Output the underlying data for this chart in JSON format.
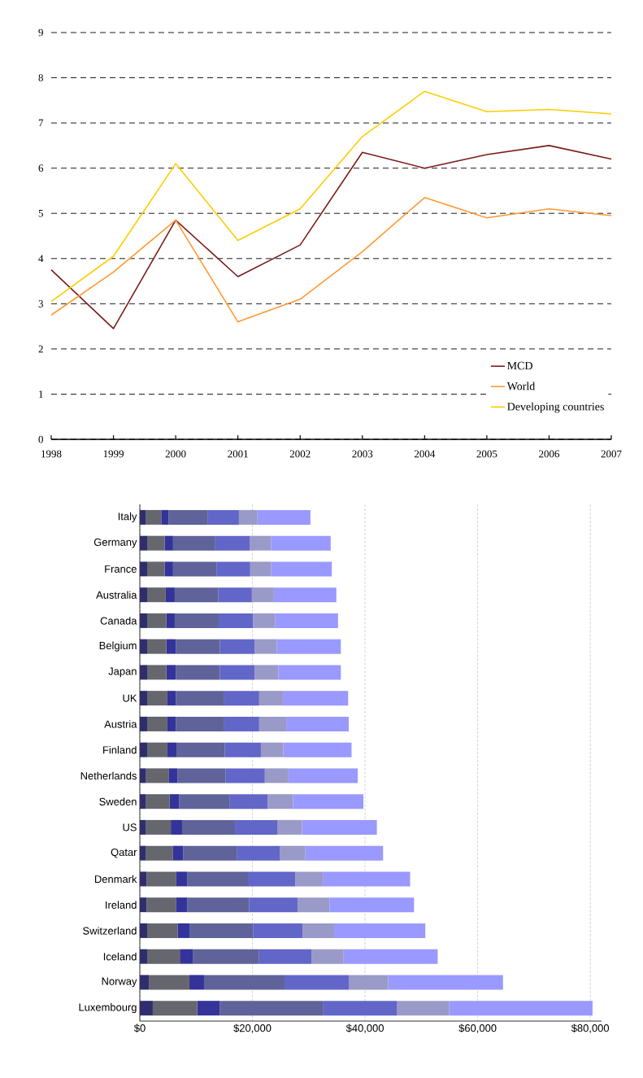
{
  "chart_data": [
    {
      "type": "line",
      "x": [
        1998,
        1999,
        2000,
        2001,
        2002,
        2003,
        2004,
        2005,
        2006,
        2007
      ],
      "series": [
        {
          "name": "MCD",
          "color": "#7b1a1a",
          "values": [
            3.75,
            2.45,
            4.85,
            3.6,
            4.3,
            6.35,
            6.0,
            6.3,
            6.5,
            6.2
          ]
        },
        {
          "name": "World",
          "color": "#ff9933",
          "values": [
            2.75,
            3.7,
            4.85,
            2.6,
            3.1,
            4.15,
            5.35,
            4.9,
            5.1,
            4.95
          ]
        },
        {
          "name": "Developing countries",
          "color": "#ffcc00",
          "values": [
            3.05,
            4.05,
            6.1,
            4.4,
            5.1,
            6.7,
            7.7,
            7.25,
            7.3,
            7.2
          ]
        }
      ],
      "xlim": [
        1998,
        2007
      ],
      "xticks": [
        1998,
        1999,
        2000,
        2001,
        2002,
        2003,
        2004,
        2005,
        2006,
        2007
      ],
      "ylim": [
        0,
        9
      ],
      "yticks": [
        0,
        1,
        2,
        3,
        4,
        5,
        6,
        7,
        8,
        9
      ],
      "grid": "y",
      "legend": "bottom right"
    },
    {
      "type": "bar",
      "orientation": "horizontal",
      "stacked": true,
      "categories": [
        "Italy",
        "Germany",
        "France",
        "Australia",
        "Canada",
        "Belgium",
        "Japan",
        "UK",
        "Austria",
        "Finland",
        "Netherlands",
        "Sweden",
        "US",
        "Qatar",
        "Denmark",
        "Ireland",
        "Switzerland",
        "Iceland",
        "Norway",
        "Luxembourg"
      ],
      "series": [
        {
          "color": "#2e2e6e",
          "values": [
            1100,
            1300,
            1300,
            1300,
            1300,
            1300,
            1300,
            1300,
            1300,
            1300,
            1100,
            1100,
            1100,
            1100,
            1200,
            1200,
            1300,
            1300,
            1600,
            2300
          ]
        },
        {
          "color": "#66666e",
          "values": [
            2700,
            3100,
            3100,
            3300,
            3400,
            3400,
            3400,
            3600,
            3600,
            3600,
            4000,
            4200,
            4400,
            4800,
            5200,
            5200,
            5400,
            5800,
            7200,
            7900
          ]
        },
        {
          "color": "#33339a",
          "values": [
            1300,
            1500,
            1500,
            1600,
            1500,
            1700,
            1700,
            1500,
            1500,
            1600,
            1600,
            1700,
            2000,
            1800,
            2000,
            2000,
            2200,
            2300,
            2600,
            4000
          ]
        },
        {
          "color": "#5f639a",
          "values": [
            7000,
            7500,
            7700,
            7700,
            7800,
            7800,
            7800,
            8600,
            8600,
            8600,
            8500,
            8900,
            9400,
            9500,
            10800,
            11000,
            11200,
            11700,
            14300,
            18300
          ]
        },
        {
          "color": "#6266c8",
          "values": [
            5500,
            6100,
            6000,
            6000,
            6100,
            6200,
            6200,
            6200,
            6200,
            6400,
            7000,
            6800,
            7500,
            7700,
            8400,
            8600,
            8800,
            9400,
            11400,
            13200
          ]
        },
        {
          "color": "#9a9ac8",
          "values": [
            3300,
            3800,
            3700,
            3900,
            3900,
            3900,
            4200,
            4200,
            4800,
            4000,
            4200,
            4500,
            4400,
            4500,
            4900,
            5700,
            5600,
            5700,
            7000,
            9200
          ]
        },
        {
          "color": "#9999ff",
          "values": [
            9400,
            10600,
            10800,
            11100,
            11200,
            11400,
            11100,
            11600,
            11100,
            12100,
            12300,
            12500,
            13300,
            13800,
            15500,
            15000,
            16200,
            16700,
            20400,
            25500
          ]
        }
      ],
      "xlim": [
        0,
        82000
      ],
      "xticks": [
        {
          "value": 0,
          "label": "$0"
        },
        {
          "value": 20000,
          "label": "$20,000"
        },
        {
          "value": 40000,
          "label": "$40,000"
        },
        {
          "value": 60000,
          "label": "$60,000"
        },
        {
          "value": 80000,
          "label": "$80,000"
        }
      ],
      "grid": "x"
    }
  ]
}
